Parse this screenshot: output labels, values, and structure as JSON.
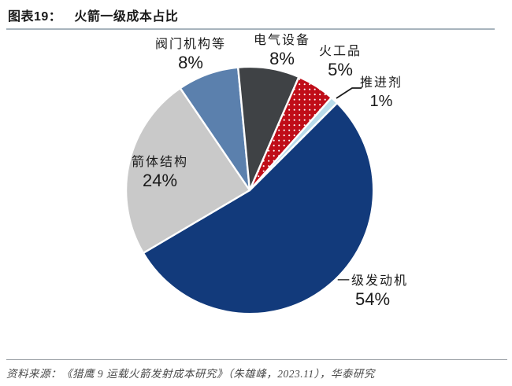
{
  "header": {
    "figure_no": "图表19：",
    "title": "火箭一级成本占比"
  },
  "chart_data": {
    "type": "pie",
    "title": "火箭一级成本占比",
    "legend": "none",
    "rotation_deg": 45,
    "unit": "%",
    "slices": [
      {
        "name": "first-stage-engine",
        "label": "一级发动机",
        "value": 54,
        "pct_text": "54%",
        "color": "#123a7b"
      },
      {
        "name": "body-structure",
        "label": "箭体结构",
        "value": 24,
        "pct_text": "24%",
        "color": "#c9c9c9"
      },
      {
        "name": "valve-mechanism",
        "label": "阀门机构等",
        "value": 8,
        "pct_text": "8%",
        "color": "#5b80ad"
      },
      {
        "name": "electrical-equip",
        "label": "电气设备",
        "value": 8,
        "pct_text": "8%",
        "color": "#3f4245"
      },
      {
        "name": "pyrotechnics",
        "label": "火工品",
        "value": 5,
        "pct_text": "5%",
        "color": "#c00d18",
        "pattern": "dots"
      },
      {
        "name": "propellant",
        "label": "推进剂",
        "value": 1,
        "pct_text": "1%",
        "color": "#b9dcea"
      }
    ]
  },
  "footer": {
    "source": "资料来源：《猎鹰 9 运载火箭发射成本研究》（朱雄峰，2023.11），华泰研究"
  },
  "colors": {
    "header_rule": "#a8b4bd",
    "footer_rule": "#9aa0a6",
    "slice_border": "#ffffff",
    "label_text": "#1a1a1a",
    "source_text": "#4a4a4a"
  }
}
